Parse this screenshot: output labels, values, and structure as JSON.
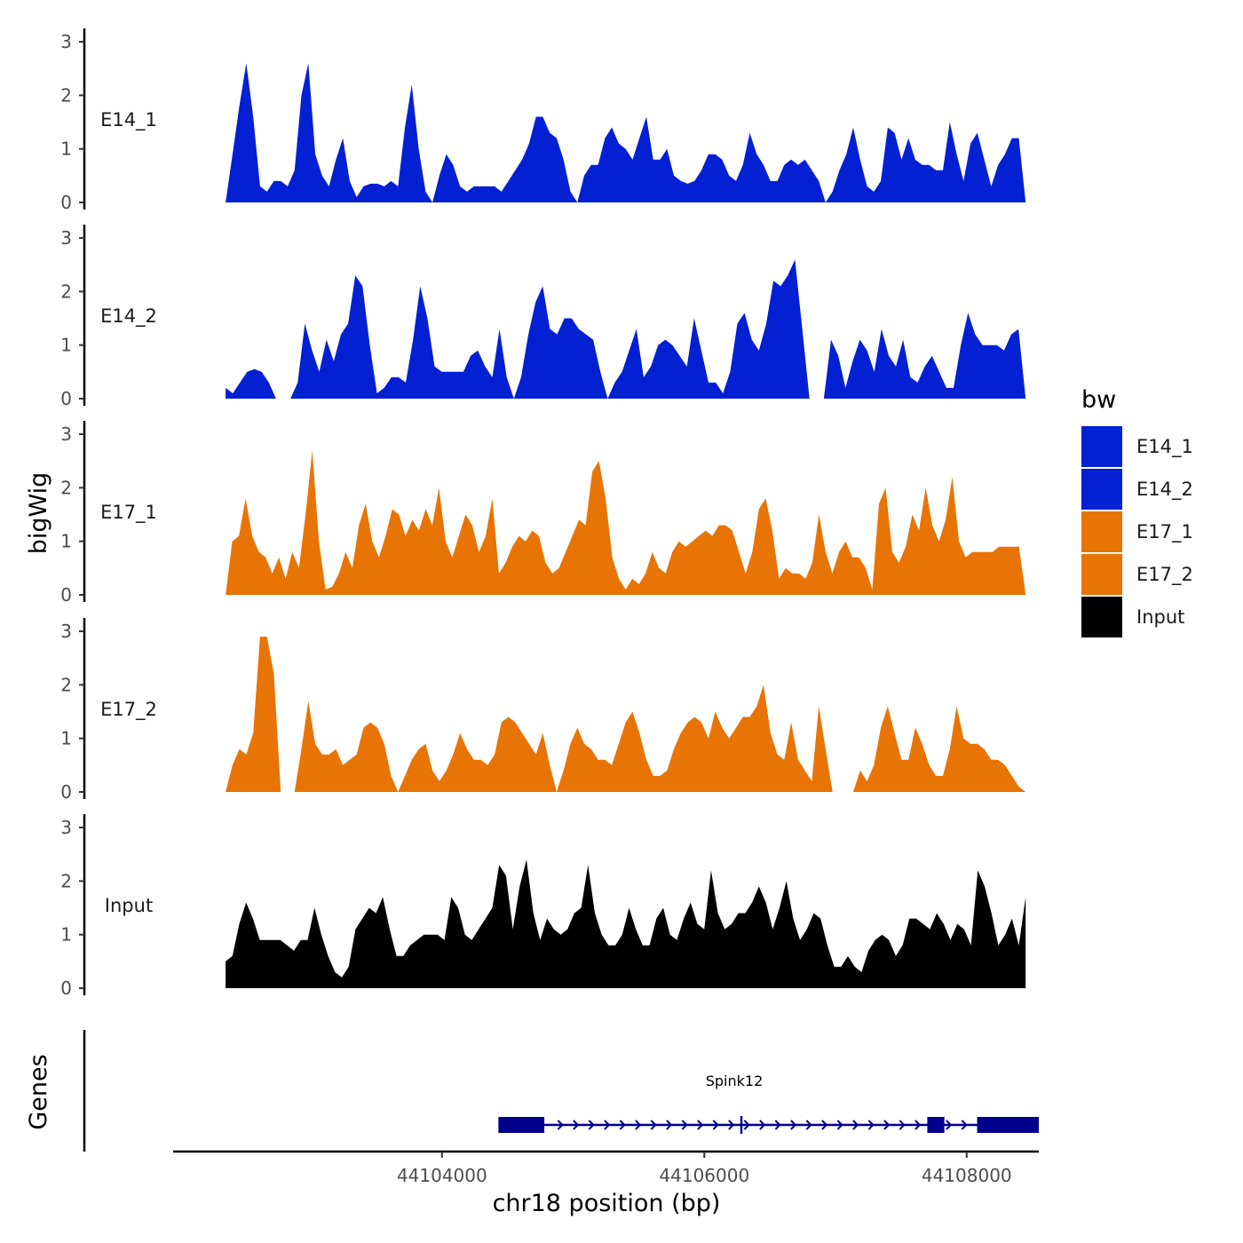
{
  "chart_data": {
    "type": "area",
    "ylabel": "bigWig",
    "xlabel": "chr18 position (bp)",
    "ylim": [
      0,
      3.1
    ],
    "yticks": [
      0,
      1,
      2,
      3
    ],
    "xticks": [
      44104000,
      44106000,
      44108000
    ],
    "xtick_labels": [
      "44104000",
      "44106000",
      "44108000"
    ],
    "xlim": [
      44101950,
      44108550
    ],
    "data_range": [
      44102350,
      44108450
    ],
    "legend": {
      "title": "bw",
      "placement": "right",
      "entries": [
        {
          "label": "E14_1",
          "color": "#0320D3"
        },
        {
          "label": "E14_2",
          "color": "#0320D3"
        },
        {
          "label": "E17_1",
          "color": "#E87405"
        },
        {
          "label": "E17_2",
          "color": "#E87405"
        },
        {
          "label": "Input",
          "color": "#000000"
        }
      ]
    },
    "series": [
      {
        "name": "E14_1",
        "color": "#0320D3",
        "values": [
          0,
          0.9,
          1.8,
          2.6,
          1.6,
          0.3,
          0.2,
          0.4,
          0.4,
          0.3,
          0.6,
          2.0,
          2.6,
          0.9,
          0.5,
          0.3,
          0.8,
          1.2,
          0.4,
          0.1,
          0.3,
          0.35,
          0.35,
          0.3,
          0.4,
          0.3,
          1.4,
          2.2,
          1.0,
          0.2,
          0,
          0.5,
          0.9,
          0.7,
          0.3,
          0.2,
          0.3,
          0.3,
          0.3,
          0.3,
          0.2,
          0.4,
          0.6,
          0.8,
          1.1,
          1.6,
          1.6,
          1.3,
          1.2,
          0.8,
          0.2,
          0,
          0.5,
          0.7,
          0.7,
          1.2,
          1.4,
          1.1,
          1.0,
          0.8,
          1.2,
          1.6,
          0.8,
          0.8,
          1.0,
          0.5,
          0.4,
          0.35,
          0.4,
          0.6,
          0.9,
          0.9,
          0.8,
          0.5,
          0.4,
          0.7,
          1.3,
          0.9,
          0.7,
          0.4,
          0.4,
          0.7,
          0.8,
          0.7,
          0.8,
          0.6,
          0.4,
          0,
          0.2,
          0.6,
          0.9,
          1.4,
          0.8,
          0.3,
          0.2,
          0.4,
          1.4,
          1.3,
          0.8,
          1.2,
          0.8,
          0.7,
          0.7,
          0.6,
          0.6,
          1.5,
          0.9,
          0.4,
          1.1,
          1.3,
          0.8,
          0.3,
          0.7,
          0.9,
          1.2,
          1.2,
          0
        ]
      },
      {
        "name": "E14_2",
        "color": "#0320D3",
        "values": [
          0.2,
          0.1,
          0.3,
          0.5,
          0.55,
          0.5,
          0.3,
          0,
          null,
          0,
          0.3,
          1.4,
          0.9,
          0.5,
          1.1,
          0.7,
          1.2,
          1.4,
          2.3,
          2.1,
          1.0,
          0.1,
          0.2,
          0.4,
          0.4,
          0.3,
          1.1,
          2.1,
          1.5,
          0.6,
          0.5,
          0.5,
          0.5,
          0.5,
          0.8,
          0.9,
          0.6,
          0.4,
          1.3,
          0.4,
          0,
          0.4,
          1.2,
          1.8,
          2.1,
          1.3,
          1.2,
          1.5,
          1.5,
          1.3,
          1.2,
          1.1,
          0.5,
          0,
          0.3,
          0.5,
          0.9,
          1.3,
          0.4,
          0.6,
          1.0,
          1.1,
          1.0,
          0.8,
          0.6,
          1.5,
          0.9,
          0.3,
          0.3,
          0.1,
          0.5,
          1.4,
          1.6,
          1.1,
          0.9,
          1.4,
          2.2,
          2.1,
          2.3,
          2.6,
          1.3,
          0,
          null,
          0,
          1.1,
          0.8,
          0.2,
          0.7,
          1.1,
          0.9,
          0.5,
          1.3,
          0.8,
          0.6,
          1.1,
          0.4,
          0.3,
          0.6,
          0.8,
          0.5,
          0.2,
          0.2,
          1.0,
          1.6,
          1.2,
          1.0,
          1.0,
          1.0,
          0.9,
          1.2,
          1.3,
          0
        ]
      },
      {
        "name": "E17_1",
        "color": "#E87405",
        "values": [
          0,
          1.0,
          1.1,
          1.8,
          1.1,
          0.8,
          0.7,
          0.4,
          0.7,
          0.3,
          0.8,
          0.5,
          1.5,
          2.7,
          1.0,
          0.1,
          0.15,
          0.4,
          0.8,
          0.5,
          1.3,
          1.7,
          1.0,
          0.7,
          1.1,
          1.6,
          1.5,
          1.1,
          1.4,
          1.2,
          1.6,
          1.3,
          2.0,
          1.0,
          0.7,
          1.1,
          1.5,
          1.3,
          0.8,
          1.1,
          1.8,
          0.4,
          0.6,
          0.9,
          1.1,
          1.0,
          1.2,
          1.1,
          0.6,
          0.4,
          0.5,
          0.8,
          1.1,
          1.4,
          1.3,
          2.3,
          2.5,
          1.8,
          0.7,
          0.3,
          0.1,
          0.3,
          0.2,
          0.4,
          0.8,
          0.5,
          0.4,
          0.8,
          1.0,
          0.9,
          1.0,
          1.1,
          1.2,
          1.1,
          1.3,
          1.3,
          1.2,
          0.8,
          0.4,
          0.8,
          1.6,
          1.8,
          1.2,
          0.3,
          0.5,
          0.4,
          0.4,
          0.3,
          0.6,
          1.5,
          0.8,
          0.4,
          0.8,
          1.0,
          0.7,
          0.7,
          0.5,
          0.1,
          1.7,
          2.0,
          0.8,
          0.6,
          0.9,
          1.5,
          1.2,
          2.0,
          1.3,
          1.0,
          1.4,
          2.2,
          1.0,
          0.7,
          0.8,
          0.8,
          0.8,
          0.8,
          0.9,
          0.9,
          0.9,
          0.9,
          0
        ]
      },
      {
        "name": "E17_2",
        "color": "#E87405",
        "values": [
          0,
          0.5,
          0.8,
          0.7,
          1.1,
          2.9,
          2.9,
          2.2,
          0,
          null,
          0,
          0.8,
          1.7,
          0.9,
          0.7,
          0.7,
          0.8,
          0.5,
          0.6,
          0.7,
          1.2,
          1.3,
          1.2,
          0.9,
          0.3,
          0,
          0.3,
          0.6,
          0.8,
          0.9,
          0.4,
          0.2,
          0.4,
          0.7,
          1.1,
          0.8,
          0.6,
          0.6,
          0.5,
          0.7,
          1.3,
          1.4,
          1.3,
          1.1,
          0.9,
          0.7,
          1.1,
          0.5,
          0,
          0.4,
          0.9,
          1.2,
          0.9,
          0.8,
          0.6,
          0.6,
          0.5,
          0.9,
          1.3,
          1.5,
          1.1,
          0.6,
          0.3,
          0.3,
          0.4,
          0.8,
          1.1,
          1.3,
          1.4,
          1.3,
          1.0,
          1.5,
          1.2,
          1.0,
          1.2,
          1.4,
          1.4,
          1.6,
          2.0,
          1.1,
          0.7,
          0.6,
          1.3,
          0.6,
          0.4,
          0.2,
          1.6,
          0.8,
          0,
          null,
          null,
          0,
          0.4,
          0.2,
          0.5,
          1.2,
          1.6,
          1.1,
          0.6,
          0.6,
          1.2,
          0.9,
          0.5,
          0.3,
          0.3,
          0.8,
          1.6,
          1.0,
          0.9,
          0.9,
          0.8,
          0.6,
          0.6,
          0.5,
          0.3,
          0.1,
          0
        ]
      },
      {
        "name": "Input",
        "color": "#000000",
        "values": [
          0.5,
          0.6,
          1.2,
          1.6,
          1.3,
          0.9,
          0.9,
          0.9,
          0.9,
          0.8,
          0.7,
          0.9,
          0.9,
          1.5,
          1.0,
          0.6,
          0.3,
          0.2,
          0.4,
          1.1,
          1.3,
          1.5,
          1.4,
          1.7,
          1.1,
          0.6,
          0.6,
          0.8,
          0.9,
          1.0,
          1.0,
          1.0,
          0.9,
          1.7,
          1.5,
          1.0,
          0.9,
          1.1,
          1.3,
          1.5,
          2.3,
          2.1,
          1.1,
          1.9,
          2.4,
          1.4,
          0.9,
          1.3,
          1.1,
          1.0,
          1.1,
          1.4,
          1.5,
          2.3,
          1.4,
          1.0,
          0.8,
          0.8,
          1.0,
          1.5,
          1.1,
          0.8,
          0.8,
          1.3,
          1.5,
          1.0,
          0.9,
          1.3,
          1.6,
          1.2,
          1.1,
          2.2,
          1.4,
          1.1,
          1.2,
          1.4,
          1.4,
          1.6,
          1.9,
          1.6,
          1.1,
          1.5,
          2.0,
          1.3,
          0.9,
          1.1,
          1.4,
          1.3,
          0.8,
          0.4,
          0.4,
          0.6,
          0.4,
          0.3,
          0.7,
          0.9,
          1.0,
          0.9,
          0.6,
          0.8,
          1.3,
          1.3,
          1.2,
          1.1,
          1.4,
          1.2,
          0.9,
          1.2,
          1.1,
          0.8,
          2.2,
          1.9,
          1.4,
          0.8,
          1.0,
          1.3,
          0.8,
          1.7
        ]
      }
    ],
    "genes": [
      {
        "name": "Spink12",
        "strand": "+",
        "start": 44104430,
        "end": 44108550,
        "exons": [
          [
            44104430,
            44104780
          ],
          [
            44107700,
            44107830
          ],
          [
            44108080,
            44108550
          ]
        ]
      }
    ],
    "gene_track_label": "Genes"
  }
}
